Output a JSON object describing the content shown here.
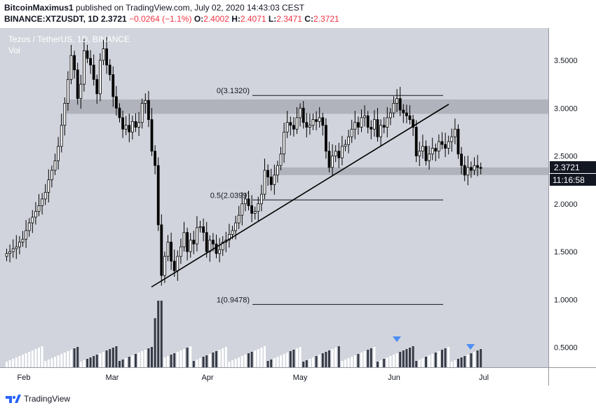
{
  "header": {
    "author": "BitcoinMaximus1",
    "published": " published on TradingView.com, July 02, 2020 14:43:03 CEST",
    "symbol": "BINANCE:XTZUSDT, 1D",
    "last": "2.3721",
    "change": "−0.0264 (−1.1%)",
    "o_label": "O:",
    "o_value": "2.4002",
    "h_label": "H:",
    "h_value": "2.4071",
    "l_label": "L:",
    "l_value": "2.3471",
    "c_label": "C:",
    "c_value": "2.3721"
  },
  "chart": {
    "title": "Tezos / TetherUS, 1D, BINANCE",
    "volume_label": "Vol",
    "price_badge": "2.3721",
    "countdown": "11:16:58",
    "fib_labels": [
      "0(3.1320)",
      "0.5(2.0399)",
      "1(0.9478)"
    ]
  },
  "footer": {
    "brand": "TradingView"
  },
  "colors": {
    "plot_bg": "#d1d4dc",
    "candle": "#000000",
    "zone": "#9598a1",
    "volume_up": "#ffffff",
    "volume_down": "#363a45",
    "marker": "#2962ff"
  },
  "chart_data": {
    "type": "candlestick",
    "x_tick_labels": [
      "Feb",
      "Mar",
      "Apr",
      "May",
      "Jun",
      "Jul"
    ],
    "y_tick_labels": [
      "3.5000",
      "3.0000",
      "2.5000",
      "2.0000",
      "1.5000",
      "1.0000",
      "0.5000"
    ],
    "ylim": [
      0.3,
      3.82
    ],
    "fib_levels": [
      {
        "label": "0(3.1320)",
        "value": 3.132
      },
      {
        "label": "0.5(2.0399)",
        "value": 2.0399
      },
      {
        "label": "1(0.9478)",
        "value": 0.9478
      }
    ],
    "zones": [
      {
        "from": 2.94,
        "to": 3.09
      },
      {
        "from": 2.3,
        "to": 2.38
      }
    ],
    "trendline": {
      "from": {
        "date": "2020-03-13",
        "price": 1.13
      },
      "to": {
        "date": "2020-06-23",
        "price": 3.04
      }
    },
    "candles_close": [
      1.48,
      1.5,
      1.53,
      1.55,
      1.6,
      1.63,
      1.72,
      1.8,
      1.86,
      1.92,
      1.98,
      2.05,
      2.12,
      2.25,
      2.35,
      2.45,
      2.6,
      2.82,
      3.05,
      3.3,
      3.55,
      3.4,
      3.1,
      3.25,
      3.6,
      3.52,
      3.45,
      3.3,
      3.15,
      3.5,
      3.62,
      3.45,
      3.35,
      3.12,
      3.0,
      2.9,
      2.78,
      2.82,
      2.75,
      2.86,
      2.8,
      2.85,
      3.05,
      3.08,
      2.88,
      2.55,
      2.4,
      1.78,
      1.25,
      1.45,
      1.6,
      1.4,
      1.3,
      1.45,
      1.55,
      1.7,
      1.5,
      1.62,
      1.58,
      1.75,
      1.76,
      1.7,
      1.5,
      1.62,
      1.58,
      1.48,
      1.52,
      1.6,
      1.62,
      1.68,
      1.72,
      1.8,
      1.88,
      2.0,
      2.05,
      1.98,
      1.9,
      1.92,
      2.0,
      2.1,
      2.35,
      2.28,
      2.2,
      2.3,
      2.4,
      2.52,
      2.75,
      2.85,
      2.82,
      2.78,
      2.9,
      3.0,
      2.85,
      2.8,
      2.82,
      2.88,
      2.86,
      2.9,
      2.82,
      2.55,
      2.38,
      2.5,
      2.55,
      2.48,
      2.6,
      2.62,
      2.7,
      2.78,
      2.85,
      2.8,
      2.9,
      2.92,
      2.8,
      2.78,
      2.88,
      2.7,
      2.82,
      2.8,
      2.9,
      2.95,
      3.05,
      3.1,
      2.98,
      2.95,
      2.92,
      2.88,
      2.8,
      2.5,
      2.55,
      2.6,
      2.45,
      2.52,
      2.58,
      2.55,
      2.65,
      2.62,
      2.58,
      2.65,
      2.7,
      2.78,
      2.52,
      2.4,
      2.3,
      2.38,
      2.35,
      2.4,
      2.38,
      2.37
    ]
  }
}
